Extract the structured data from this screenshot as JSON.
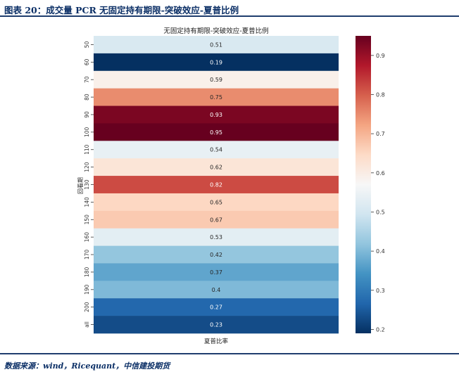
{
  "header": {
    "caption": "图表 20：成交量 PCR 无固定持有期限-突破效应-夏普比例"
  },
  "footer": {
    "source": "数据来源：wind，Ricequant，中信建投期货"
  },
  "chart_data": {
    "type": "heatmap",
    "title": "无固定持有期限-突破效应-夏普比例",
    "xlabel": "夏普比率",
    "ylabel": "回看期",
    "x_categories": [
      ""
    ],
    "y_categories": [
      "50",
      "60",
      "70",
      "80",
      "90",
      "100",
      "110",
      "120",
      "130",
      "140",
      "150",
      "160",
      "170",
      "180",
      "190",
      "200",
      "all"
    ],
    "values": [
      0.51,
      0.19,
      0.59,
      0.75,
      0.93,
      0.95,
      0.54,
      0.62,
      0.82,
      0.65,
      0.67,
      0.53,
      0.42,
      0.37,
      0.4,
      0.27,
      0.23
    ],
    "value_labels": [
      "0.51",
      "0.19",
      "0.59",
      "0.75",
      "0.93",
      "0.95",
      "0.54",
      "0.62",
      "0.82",
      "0.65",
      "0.67",
      "0.53",
      "0.42",
      "0.37",
      "0.4",
      "0.27",
      "0.23"
    ],
    "colorbar": {
      "colormap": "RdBu_r",
      "range": [
        0.19,
        0.95
      ],
      "ticks": [
        "0.2",
        "0.3",
        "0.4",
        "0.5",
        "0.6",
        "0.7",
        "0.8",
        "0.9"
      ]
    }
  }
}
